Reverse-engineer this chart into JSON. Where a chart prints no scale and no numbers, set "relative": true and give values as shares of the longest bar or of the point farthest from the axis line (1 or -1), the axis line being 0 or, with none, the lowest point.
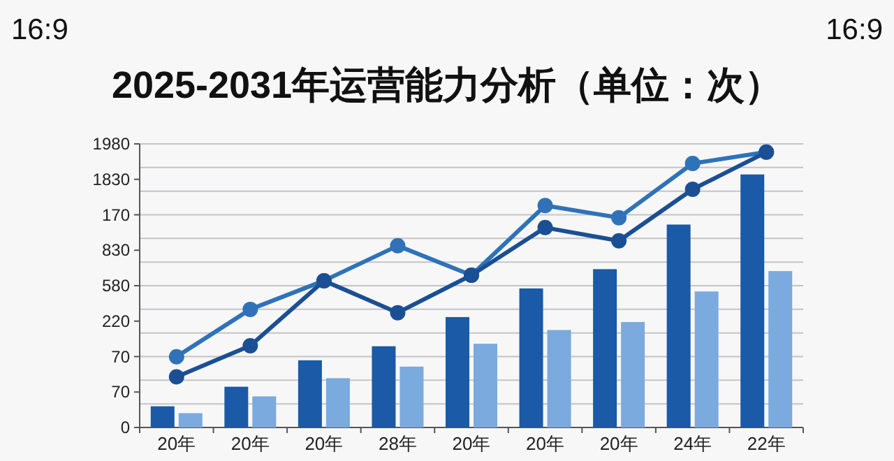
{
  "chart_data": {
    "type": "bar",
    "title": "2025-2031年运营能力分析（单位：次）",
    "annotations": [
      "16:9",
      "16:9",
      "0",
      "70",
      "70",
      "220",
      "580",
      "830",
      "170",
      "1830",
      "1980"
    ],
    "categories": [
      "20年",
      "20年",
      "20年",
      "28年",
      "20年",
      "20年",
      "20年",
      "24年",
      "22年"
    ],
    "relative": true,
    "series": [
      {
        "color": "#1a5aa6",
        "values": [
          0.077,
          0.148,
          0.244,
          0.295,
          0.401,
          0.505,
          0.575,
          0.737,
          0.919
        ]
      },
      {
        "color": "#7aaade",
        "values": [
          0.052,
          0.113,
          0.179,
          0.221,
          0.304,
          0.354,
          0.383,
          0.494,
          0.568
        ]
      },
      {
        "type": "line",
        "color": "#2f72b8",
        "marker": "circle",
        "values": [
          0.257,
          0.429,
          0.533,
          0.66,
          0.553,
          0.806,
          0.762,
          0.959,
          1
        ]
      },
      {
        "type": "line",
        "color": "#1b4f94",
        "marker": "circle",
        "values": [
          0.184,
          0.297,
          0.533,
          0.417,
          0.553,
          0.726,
          0.678,
          0.865,
          1
        ]
      }
    ],
    "grid": "y"
  }
}
